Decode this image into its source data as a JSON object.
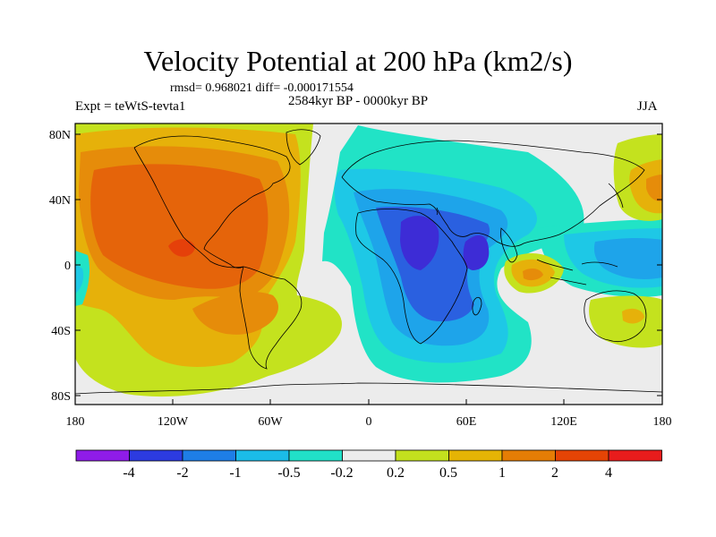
{
  "title": "Velocity Potential at 200 hPa (km2/s)",
  "stats": "rmsd= 0.968021 diff= -0.000171554",
  "experiment": "Expt = teWtS-tevta1",
  "period": "2584kyr BP - 0000kyr BP",
  "season": "JJA",
  "lat_labels": [
    "80N",
    "40N",
    "0",
    "40S",
    "80S"
  ],
  "lon_labels": [
    "180",
    "120W",
    "60W",
    "0",
    "60E",
    "120E",
    "180"
  ],
  "colorbar": {
    "labels": [
      "-4",
      "-2",
      "-1",
      "-0.5",
      "-0.2",
      "0.2",
      "0.5",
      "1",
      "2",
      "4"
    ],
    "colors": [
      "#8f1ce8",
      "#2c3be0",
      "#1e7ee6",
      "#1bbce8",
      "#21e0c8",
      "#ececec",
      "#c3e01e",
      "#e5b405",
      "#e57d05",
      "#e54405",
      "#e81c1c"
    ]
  },
  "fill_colors": {
    "neg4": "#3d2cd6",
    "neg2": "#2a60e0",
    "neg1": "#1ea4ea",
    "neg05": "#1ec8e6",
    "neg02": "#21e3c6",
    "zero": "#ececec",
    "pos02": "#c4e21e",
    "pos05": "#e6b10a",
    "pos1": "#e68c0a",
    "pos2": "#e5640a",
    "pos4": "#e5400a"
  }
}
